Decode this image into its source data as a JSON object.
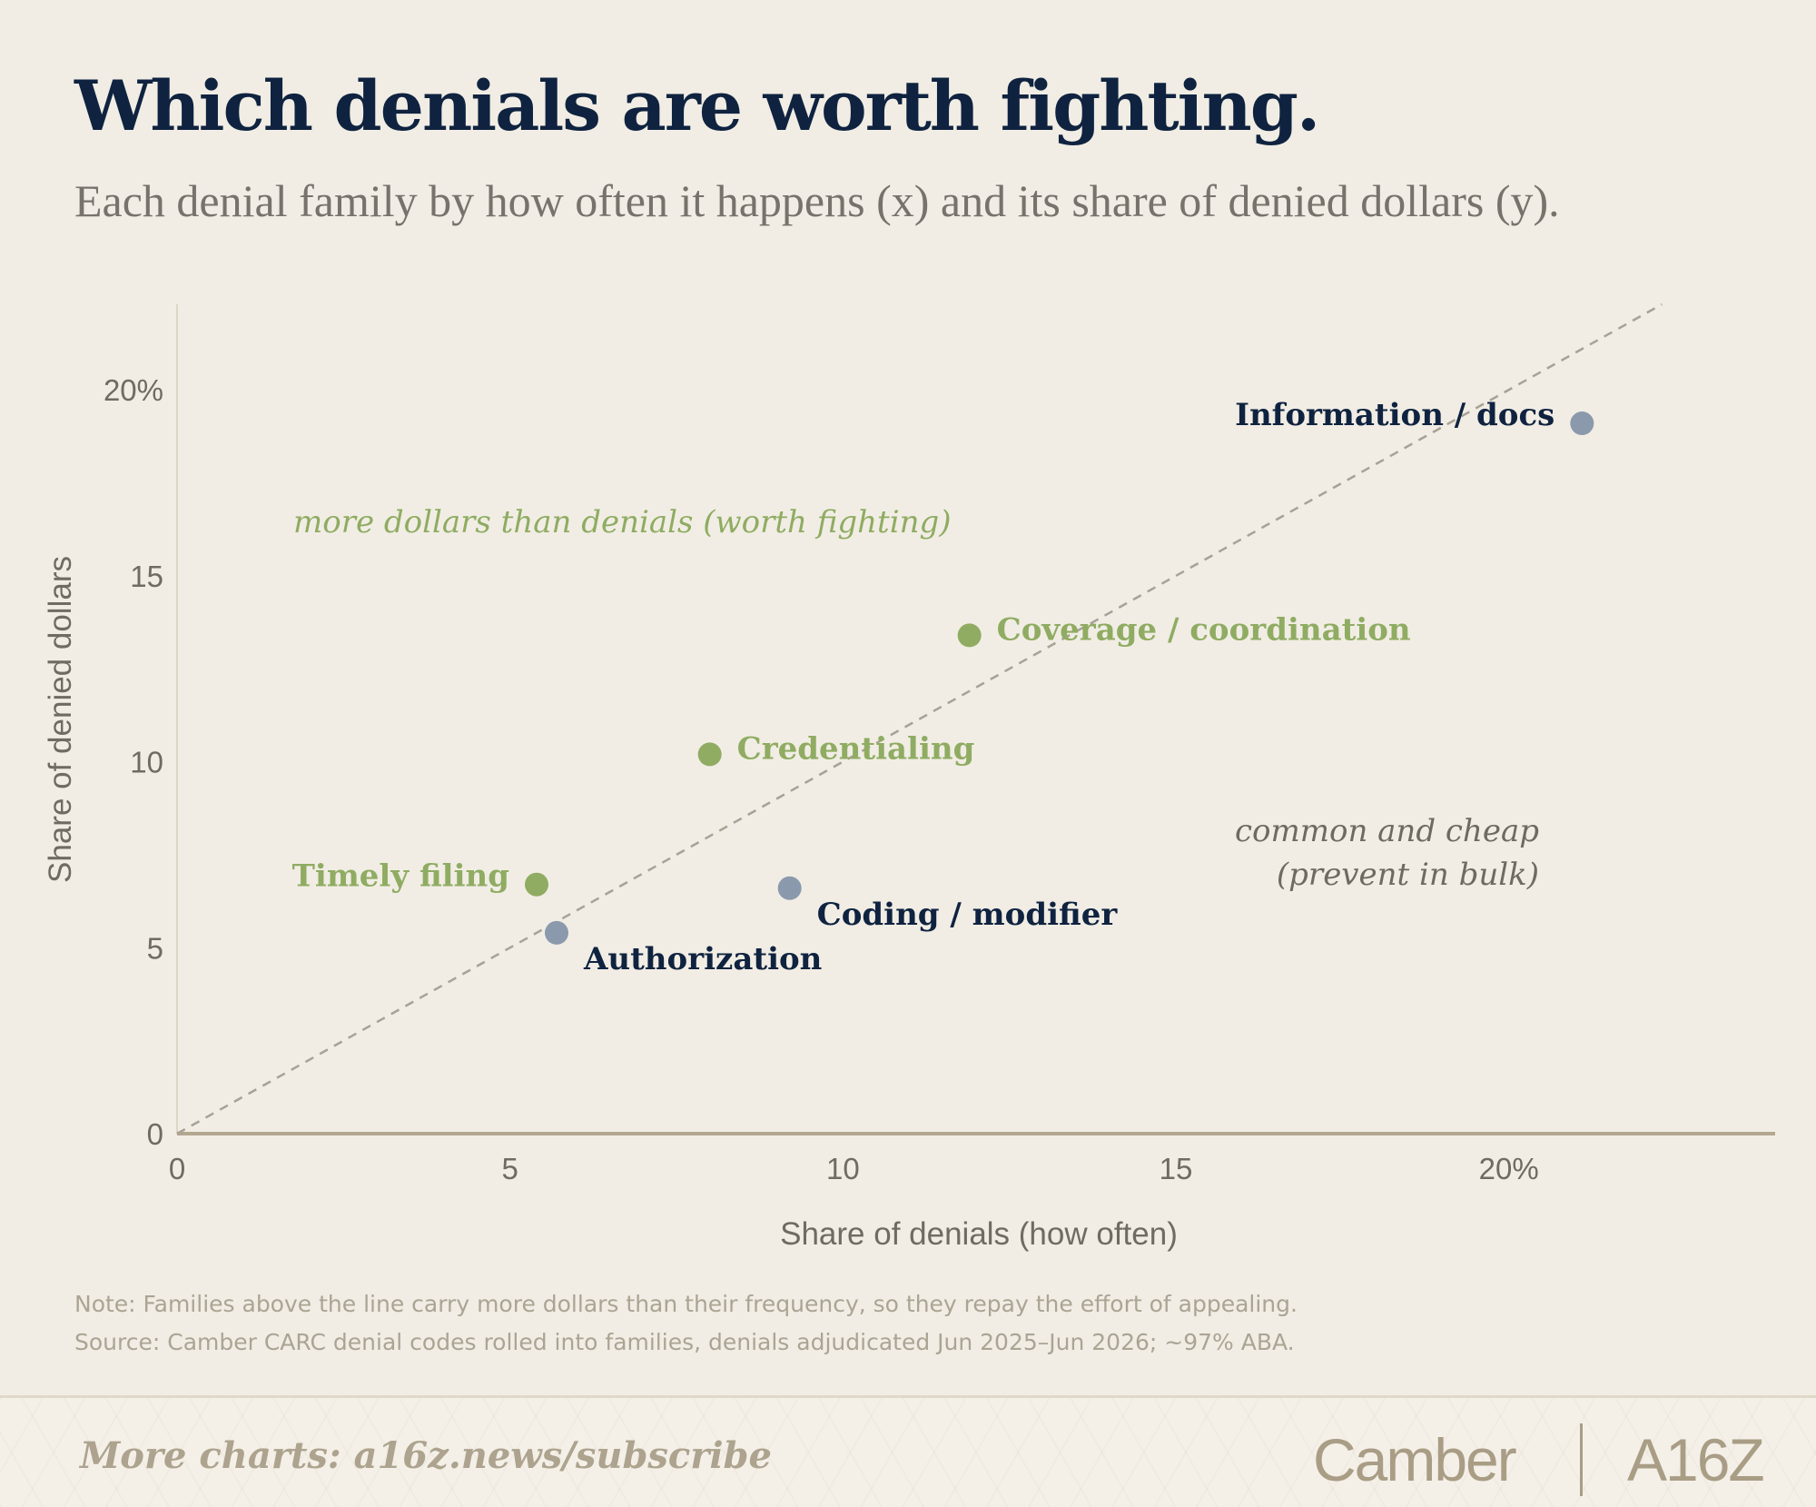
{
  "header": {
    "title": "Which denials are worth fighting.",
    "subtitle": "Each denial family by how often it happens (x) and its share of denied dollars (y)."
  },
  "chart_data": {
    "type": "scatter",
    "xlabel": "Share of denials (how often)",
    "ylabel": "Share of denied dollars",
    "xlim": [
      0,
      24
    ],
    "ylim": [
      0,
      22.3
    ],
    "x_ticks": [
      {
        "value": 0,
        "label": "0"
      },
      {
        "value": 5,
        "label": "5"
      },
      {
        "value": 10,
        "label": "10"
      },
      {
        "value": 15,
        "label": "15"
      },
      {
        "value": 20,
        "label": "20%"
      }
    ],
    "y_ticks": [
      {
        "value": 0,
        "label": "0"
      },
      {
        "value": 5,
        "label": "5"
      },
      {
        "value": 10,
        "label": "10"
      },
      {
        "value": 15,
        "label": "15"
      },
      {
        "value": 20,
        "label": "20%"
      }
    ],
    "reference_line": {
      "type": "y = x",
      "style": "dashed"
    },
    "grid": false,
    "points": [
      {
        "label": "Information / docs",
        "x": 21.1,
        "y": 19.1,
        "group": "below",
        "label_side": "left"
      },
      {
        "label": "Coverage / coordination",
        "x": 11.9,
        "y": 13.4,
        "group": "above",
        "label_side": "right"
      },
      {
        "label": "Credentialing",
        "x": 8.0,
        "y": 10.2,
        "group": "above",
        "label_side": "right"
      },
      {
        "label": "Timely filing",
        "x": 5.4,
        "y": 6.7,
        "group": "above",
        "label_side": "left"
      },
      {
        "label": "Authorization",
        "x": 5.7,
        "y": 5.4,
        "group": "below",
        "label_side": "below-right"
      },
      {
        "label": "Coding / modifier",
        "x": 9.2,
        "y": 6.6,
        "group": "below",
        "label_side": "below-right"
      }
    ],
    "annotations": {
      "above": "more dollars than denials (worth fighting)",
      "below_line1": "common and cheap",
      "below_line2": "(prevent in bulk)"
    },
    "colors": {
      "above_point": "#8fac62",
      "above_label": "#8fac62",
      "below_point": "#8b99ad",
      "below_label": "#0f2340",
      "reference_line": "#a8a195",
      "axis": "#b3a78f",
      "below_annotation": "#6e6a62"
    }
  },
  "notes": {
    "note": "Note: Families above the line carry more dollars than their frequency, so they repay the effort of appealing.",
    "source": "Source: Camber CARC denial codes rolled into families, denials adjudicated Jun 2025–Jun 2026; ~97% ABA."
  },
  "footer": {
    "cta": "More charts: a16z.news/subscribe",
    "brand_camber": "Camber",
    "brand_a16z": "A16Z"
  }
}
